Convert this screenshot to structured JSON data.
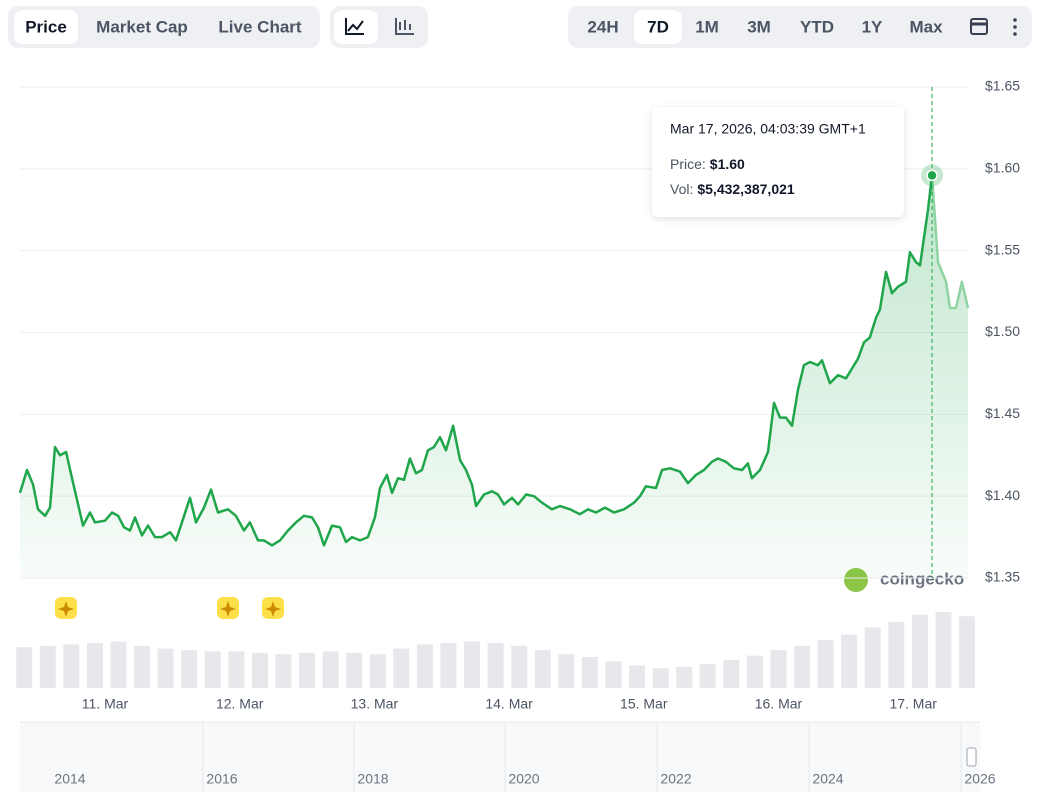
{
  "ui": {
    "view_tabs": [
      "Price",
      "Market Cap",
      "Live Chart"
    ],
    "active_view": 0,
    "ranges": [
      "24H",
      "7D",
      "1M",
      "3M",
      "YTD",
      "1Y",
      "Max"
    ],
    "active_range": 1,
    "brand": "coingecko"
  },
  "chart_data": {
    "type": "line",
    "x": [
      10.369,
      10.421,
      10.466,
      10.503,
      10.555,
      10.592,
      10.629,
      10.666,
      10.711,
      10.755,
      10.8,
      10.837,
      10.889,
      10.926,
      11.0,
      11.052,
      11.097,
      11.141,
      11.186,
      11.223,
      11.275,
      11.319,
      11.371,
      11.423,
      11.483,
      11.527,
      11.587,
      11.631,
      11.676,
      11.735,
      11.787,
      11.839,
      11.913,
      11.972,
      12.032,
      12.076,
      12.136,
      12.18,
      12.24,
      12.299,
      12.359,
      12.418,
      12.477,
      12.537,
      12.581,
      12.626,
      12.685,
      12.745,
      12.789,
      12.834,
      12.893,
      12.952,
      13.004,
      13.042,
      13.093,
      13.131,
      13.175,
      13.22,
      13.264,
      13.309,
      13.353,
      13.398,
      13.442,
      13.487,
      13.532,
      13.584,
      13.636,
      13.68,
      13.725,
      13.754,
      13.814,
      13.873,
      13.918,
      13.962,
      14.022,
      14.066,
      14.126,
      14.185,
      14.244,
      14.318,
      14.378,
      14.452,
      14.526,
      14.586,
      14.645,
      14.712,
      14.779,
      14.853,
      14.927,
      14.972,
      15.016,
      15.091,
      15.135,
      15.195,
      15.269,
      15.328,
      15.388,
      15.447,
      15.506,
      15.551,
      15.61,
      15.669,
      15.729,
      15.773,
      15.803,
      15.863,
      15.922,
      15.967,
      16.011,
      16.056,
      16.1,
      16.145,
      16.189,
      16.234,
      16.293,
      16.323,
      16.382,
      16.442,
      16.501,
      16.546,
      16.59,
      16.635,
      16.679,
      16.724,
      16.753,
      16.798,
      16.843,
      16.887,
      16.947,
      16.976,
      17.021,
      17.051,
      17.11,
      17.14,
      17.184,
      17.244,
      17.273,
      17.318,
      17.362,
      17.407
    ],
    "series": [
      {
        "color": "#1fa64a",
        "values": [
          1.402,
          1.416,
          1.407,
          1.392,
          1.388,
          1.393,
          1.43,
          1.425,
          1.427,
          1.411,
          1.395,
          1.382,
          1.39,
          1.384,
          1.385,
          1.39,
          1.388,
          1.381,
          1.379,
          1.387,
          1.376,
          1.382,
          1.375,
          1.375,
          1.378,
          1.373,
          1.388,
          1.399,
          1.384,
          1.393,
          1.404,
          1.39,
          1.392,
          1.388,
          1.379,
          1.384,
          1.373,
          1.373,
          1.37,
          1.373,
          1.379,
          1.384,
          1.388,
          1.387,
          1.381,
          1.37,
          1.382,
          1.381,
          1.372,
          1.375,
          1.373,
          1.375,
          1.387,
          1.405,
          1.413,
          1.402,
          1.411,
          1.41,
          1.423,
          1.414,
          1.416,
          1.428,
          1.43,
          1.436,
          1.428,
          1.443,
          1.422,
          1.416,
          1.407,
          1.394,
          1.401,
          1.403,
          1.401,
          1.395,
          1.399,
          1.395,
          1.401,
          1.4,
          1.396,
          1.392,
          1.394,
          1.392,
          1.389,
          1.392,
          1.39,
          1.393,
          1.39,
          1.392,
          1.396,
          1.4,
          1.406,
          1.405,
          1.416,
          1.417,
          1.415,
          1.408,
          1.413,
          1.416,
          1.421,
          1.423,
          1.421,
          1.417,
          1.416,
          1.42,
          1.411,
          1.416,
          1.427,
          1.457,
          1.448,
          1.448,
          1.443,
          1.465,
          1.48,
          1.482,
          1.48,
          1.483,
          1.469,
          1.474,
          1.472,
          1.478,
          1.484,
          1.494,
          1.497,
          1.509,
          1.514,
          1.537,
          1.524,
          1.528,
          1.531,
          1.549,
          1.543,
          1.541,
          1.575,
          1.596,
          1.543,
          1.531,
          1.515,
          1.515,
          1.531,
          1.515
        ]
      }
    ],
    "xlim": [
      10.369,
      17.407
    ],
    "xticks": [
      {
        "value": 11,
        "label": "11. Mar"
      },
      {
        "value": 12,
        "label": "12. Mar"
      },
      {
        "value": 13,
        "label": "13. Mar"
      },
      {
        "value": 14,
        "label": "14. Mar"
      },
      {
        "value": 15,
        "label": "15. Mar"
      },
      {
        "value": 16,
        "label": "16. Mar"
      },
      {
        "value": 17,
        "label": "17. Mar"
      }
    ],
    "ylim": [
      1.35,
      1.65
    ],
    "yticks": [
      {
        "value": 1.35,
        "label": "$1.35"
      },
      {
        "value": 1.4,
        "label": "$1.40"
      },
      {
        "value": 1.45,
        "label": "$1.45"
      },
      {
        "value": 1.5,
        "label": "$1.50"
      },
      {
        "value": 1.55,
        "label": "$1.55"
      },
      {
        "value": 1.6,
        "label": "$1.60"
      },
      {
        "value": 1.65,
        "label": "$1.65"
      }
    ],
    "grid": true,
    "tooltip": {
      "index": 133,
      "date": "Mar 17, 2026, 04:03:39 GMT+1",
      "price_label": "Price:",
      "price": "$1.60",
      "vol_label": "Vol:",
      "vol": "$5,432,387,021"
    },
    "volume": {
      "color": "#d1d5db",
      "x": [
        10.4,
        10.575,
        10.75,
        10.925,
        11.1,
        11.275,
        11.45,
        11.625,
        11.8,
        11.975,
        12.15,
        12.325,
        12.5,
        12.675,
        12.85,
        13.025,
        13.2,
        13.375,
        13.55,
        13.725,
        13.9,
        14.075,
        14.25,
        14.425,
        14.6,
        14.775,
        14.95,
        15.125,
        15.3,
        15.475,
        15.65,
        15.825,
        16.0,
        16.175,
        16.35,
        16.525,
        16.7,
        16.875,
        17.05,
        17.225,
        17.4
      ],
      "values": [
        2900000000,
        3000000000,
        3100000000,
        3200000000,
        3300000000,
        3000000000,
        2800000000,
        2700000000,
        2600000000,
        2600000000,
        2500000000,
        2400000000,
        2500000000,
        2600000000,
        2500000000,
        2400000000,
        2800000000,
        3100000000,
        3200000000,
        3300000000,
        3200000000,
        3000000000,
        2700000000,
        2400000000,
        2200000000,
        1900000000,
        1600000000,
        1400000000,
        1500000000,
        1700000000,
        2000000000,
        2300000000,
        2700000000,
        3000000000,
        3400000000,
        3800000000,
        4300000000,
        4700000000,
        5200000000,
        5400000000,
        5100000000
      ]
    },
    "navigator": {
      "labels": [
        "2014",
        "2016",
        "2018",
        "2020",
        "2022",
        "2024",
        "2026"
      ]
    }
  }
}
